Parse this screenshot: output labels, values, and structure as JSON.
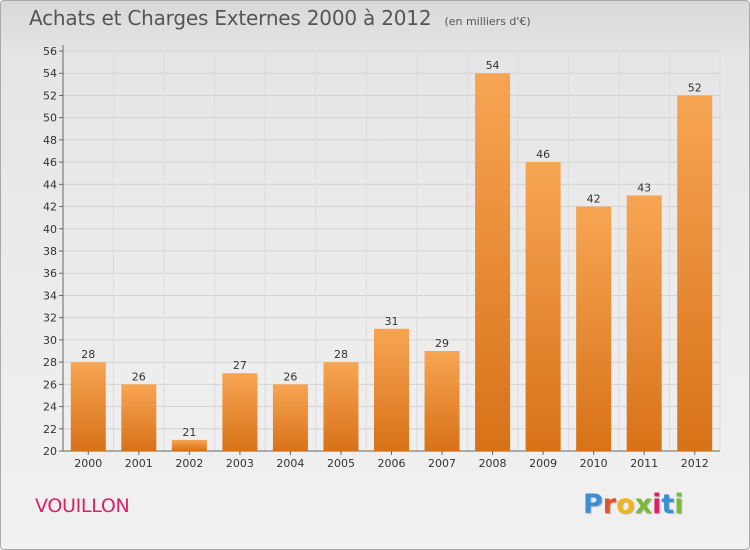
{
  "header": {
    "title": "Achats et Charges Externes 2000 à 2012",
    "unit": "(en milliers d'€)"
  },
  "footer": {
    "commune": "VOUILLON",
    "logo_text": "Proxiti"
  },
  "colors": {
    "bar_light": "#f7a553",
    "bar_dark": "#d87218",
    "commune_text": "#d8236a",
    "logo": [
      "#3a8fd6",
      "#e0562a",
      "#f2b31b",
      "#7cb83a",
      "#d8236a",
      "#3a8fd6",
      "#7cb83a"
    ]
  },
  "chart_data": {
    "type": "bar",
    "title": "Achats et Charges Externes 2000 à 2012",
    "subtitle": "(en milliers d'€)",
    "xlabel": "",
    "ylabel": "",
    "categories": [
      "2000",
      "2001",
      "2002",
      "2003",
      "2004",
      "2005",
      "2006",
      "2007",
      "2008",
      "2009",
      "2010",
      "2011",
      "2012"
    ],
    "values": [
      28,
      26,
      21,
      27,
      26,
      28,
      31,
      29,
      54,
      46,
      42,
      43,
      52
    ],
    "ylim": [
      20,
      56
    ],
    "yticks": [
      20,
      22,
      24,
      26,
      28,
      30,
      32,
      34,
      36,
      38,
      40,
      42,
      44,
      46,
      48,
      50,
      52,
      54,
      56
    ],
    "grid": true,
    "legend": "none"
  }
}
